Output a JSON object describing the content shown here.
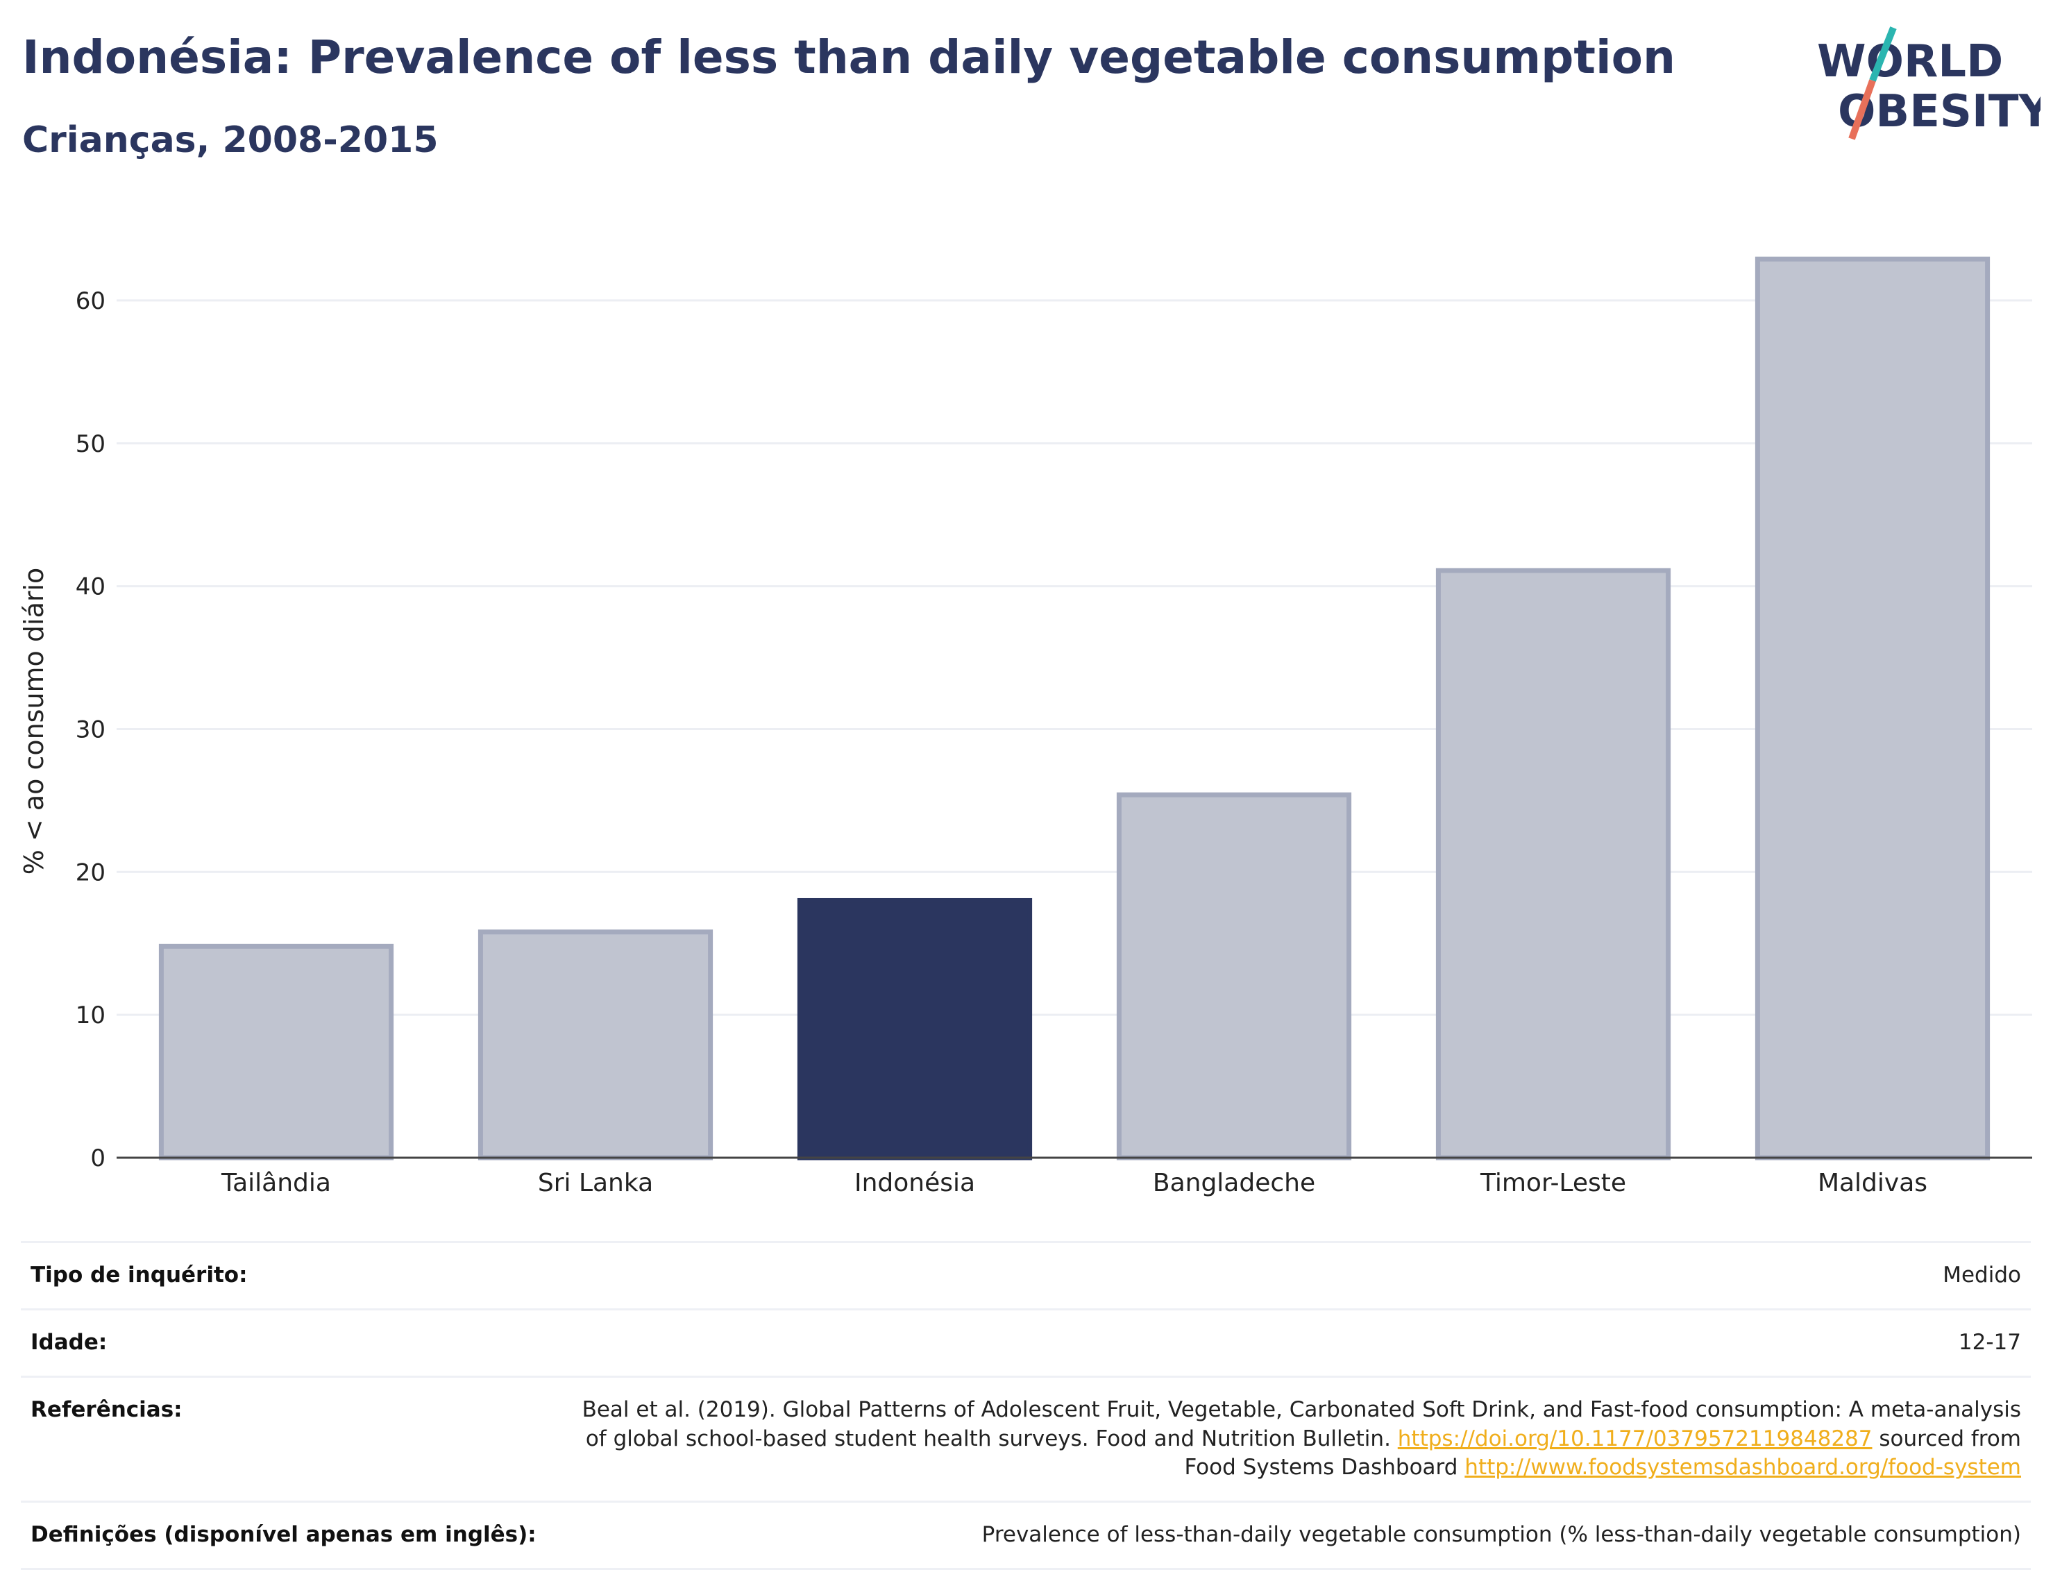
{
  "header": {
    "title": "Indonésia: Prevalence of less than daily vegetable consumption",
    "subtitle": "Crianças, 2008-2015"
  },
  "logo": {
    "line1": "WORLD",
    "line2": "OBESITY",
    "colors": {
      "text": "#2b365f",
      "slash_top": "#2bb5b0",
      "slash_bottom": "#e8705a"
    }
  },
  "chart_data": {
    "type": "bar",
    "categories": [
      "Tailândia",
      "Sri Lanka",
      "Indonésia",
      "Bangladeche",
      "Timor-Leste",
      "Maldivas"
    ],
    "values": [
      14.8,
      15.8,
      18.0,
      25.4,
      41.1,
      62.9
    ],
    "highlight": "Indonésia",
    "ylabel": "% < ao consumo diário",
    "ylim": [
      0,
      65
    ],
    "yticks": [
      0,
      10,
      20,
      30,
      40,
      50,
      60
    ],
    "grid": true,
    "colors": {
      "highlight": "#2b365f",
      "bar_fill": "#c0c4d0",
      "bar_stroke": "#a4aabe",
      "grid": "#eceef3",
      "axis": "#444444"
    }
  },
  "meta": {
    "survey_type_label": "Tipo de inquérito:",
    "survey_type_value": "Medido",
    "age_label": "Idade:",
    "age_value": "12-17",
    "references_label": "Referências:",
    "references_text_1": "Beal et al. (2019). Global Patterns of Adolescent Fruit, Vegetable, Carbonated Soft Drink, and Fast-food consumption: A meta-analysis of global school-based student health surveys. Food and Nutrition Bulletin.",
    "references_link_1": "https://doi.org/10.1177/0379572119848287",
    "references_text_2": "sourced from Food Systems Dashboard",
    "references_link_2": "http://www.foodsystemsdashboard.org/food-system",
    "definitions_label": "Definições (disponível apenas em inglês):",
    "definitions_value": "Prevalence of less-than-daily vegetable consumption (% less-than-daily vegetable consumption)"
  }
}
